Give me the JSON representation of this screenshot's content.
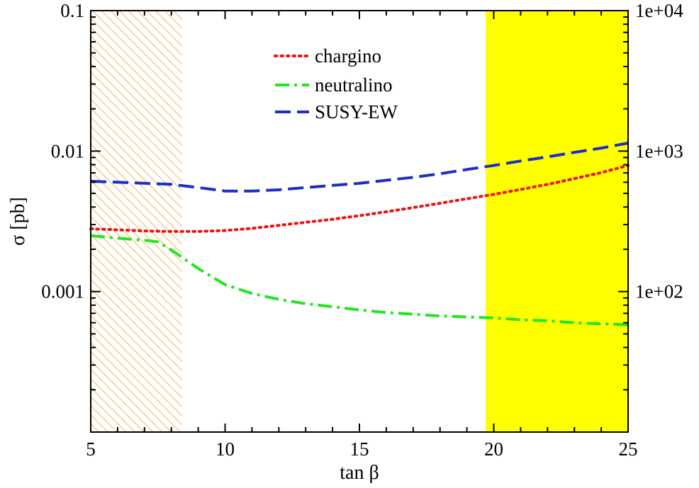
{
  "chart_data": {
    "type": "line",
    "title": "",
    "xlabel": "tan β",
    "ylabel": "σ [pb]",
    "xlim": [
      5,
      25
    ],
    "ylim": [
      0.0001,
      0.1
    ],
    "yscale": "log",
    "x_ticks": [
      {
        "value": 5,
        "label": "5"
      },
      {
        "value": 10,
        "label": "10"
      },
      {
        "value": 15,
        "label": "15"
      },
      {
        "value": 20,
        "label": "20"
      },
      {
        "value": 25,
        "label": "25"
      }
    ],
    "y_ticks": [
      {
        "value": 0.1,
        "label": "0.1"
      },
      {
        "value": 0.01,
        "label": "0.01"
      },
      {
        "value": 0.001,
        "label": "0.001"
      }
    ],
    "y2_ticks": [
      {
        "value": 0.1,
        "label": "1e+04"
      },
      {
        "value": 0.01,
        "label": "1e+03"
      },
      {
        "value": 0.001,
        "label": "1e+02"
      }
    ],
    "legend_position": "top-center",
    "series": [
      {
        "name": "chargino",
        "color": "#ee1111",
        "style": "dotted",
        "x": [
          5,
          6,
          7,
          8,
          9,
          10,
          11,
          12,
          13,
          14,
          15,
          16,
          17,
          18,
          19,
          20,
          21,
          22,
          23,
          24,
          25
        ],
        "values": [
          0.0028,
          0.00275,
          0.0027,
          0.00268,
          0.00268,
          0.00272,
          0.00282,
          0.00296,
          0.00311,
          0.00327,
          0.00347,
          0.0037,
          0.00396,
          0.00425,
          0.00458,
          0.00492,
          0.00533,
          0.0058,
          0.00637,
          0.00703,
          0.0079
        ]
      },
      {
        "name": "neutralino",
        "color": "#22e622",
        "style": "dashdot",
        "x": [
          5,
          6,
          7,
          7.5,
          8,
          9,
          10,
          11,
          12,
          13,
          14,
          15,
          16,
          17,
          18,
          19,
          20,
          21,
          22,
          23,
          24,
          25
        ],
        "values": [
          0.0025,
          0.0024,
          0.00232,
          0.00226,
          0.00198,
          0.00146,
          0.00112,
          0.00097,
          0.00088,
          0.00082,
          0.00078,
          0.00074,
          0.00071,
          0.00069,
          0.00067,
          0.00066,
          0.00065,
          0.00063,
          0.00062,
          0.0006,
          0.00059,
          0.00058
        ]
      },
      {
        "name": "SUSY-EW",
        "color": "#1a2ecc",
        "style": "dashed",
        "x": [
          5,
          6,
          7,
          8,
          9,
          10,
          11,
          12,
          13,
          14,
          15,
          16,
          17,
          18,
          19,
          20,
          21,
          22,
          23,
          24,
          25
        ],
        "values": [
          0.0061,
          0.006,
          0.0059,
          0.0058,
          0.0055,
          0.0052,
          0.0052,
          0.0053,
          0.0055,
          0.0057,
          0.0059,
          0.0062,
          0.0065,
          0.0069,
          0.0074,
          0.0079,
          0.0085,
          0.0091,
          0.0098,
          0.0105,
          0.0114
        ]
      }
    ],
    "regions": [
      {
        "name": "hatched-excluded-region",
        "x_range": [
          5,
          8.4
        ],
        "color": "#f0a030",
        "fill": "hatched"
      },
      {
        "name": "yellow-excluded-region",
        "x_range": [
          19.7,
          25
        ],
        "color": "#ffff00",
        "fill": "solid"
      }
    ]
  }
}
